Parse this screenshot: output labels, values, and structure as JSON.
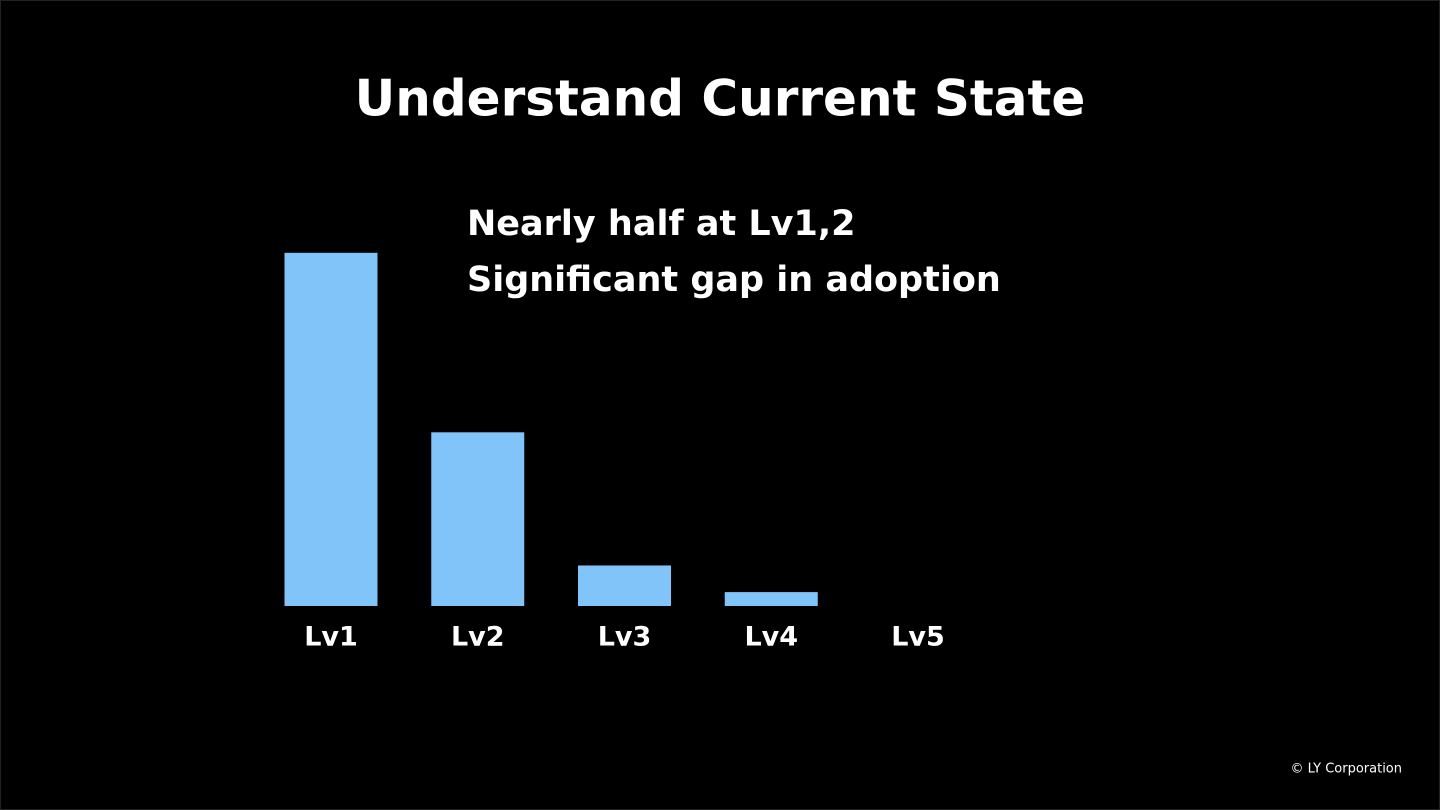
{
  "title": "Understand Current State",
  "notes": [
    "Nearly half at Lv1,2",
    "Significant gap in adoption"
  ],
  "chart_data": {
    "type": "bar",
    "categories": [
      "Lv1",
      "Lv2",
      "Lv3",
      "Lv4",
      "Lv5"
    ],
    "values": [
      61,
      30,
      7,
      2.4,
      0
    ],
    "color": "#80c4fa"
  },
  "footer": "© LY Corporation"
}
